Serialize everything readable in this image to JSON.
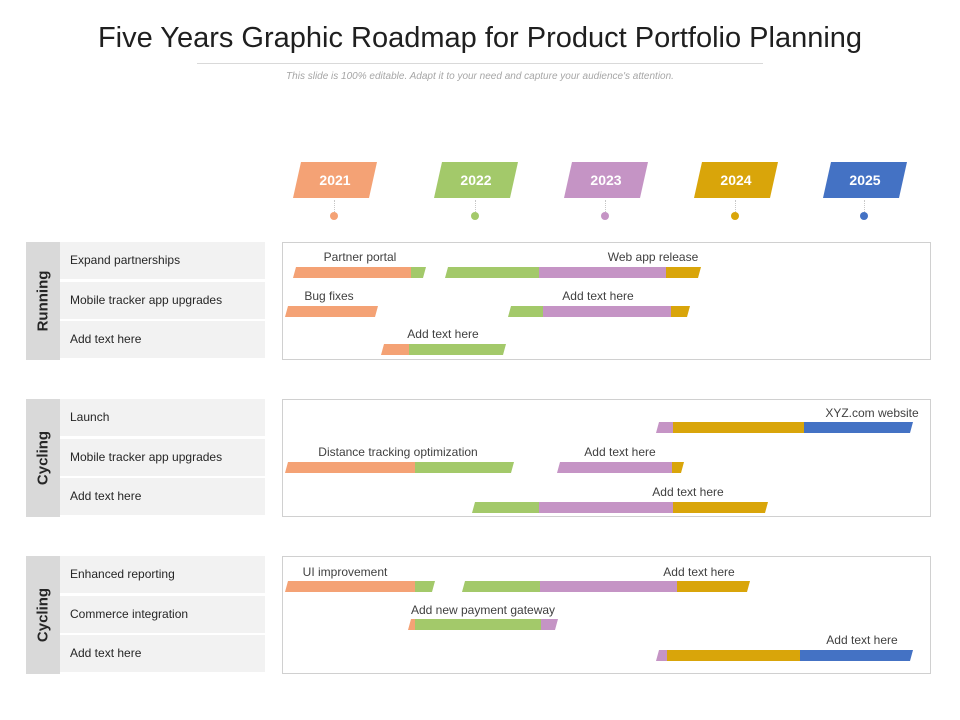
{
  "title": "Five Years Graphic Roadmap for Product Portfolio Planning",
  "subtitle": "This slide is 100% editable. Adapt it to your need and capture your audience's attention.",
  "colors": {
    "y2021": "#f4a275",
    "y2022": "#a3c96a",
    "y2023": "#c594c5",
    "y2024": "#d9a50a",
    "y2025": "#4472c4"
  },
  "years": [
    "2021",
    "2022",
    "2023",
    "2024",
    "2025"
  ],
  "sections": [
    {
      "category": "Running",
      "rows": [
        "Expand partnerships",
        "Mobile tracker app upgrades",
        "Add text here"
      ],
      "bars": [
        {
          "label": "Partner portal"
        },
        {
          "label": "Web app release"
        },
        {
          "label": "Bug fixes"
        },
        {
          "label": "Add text here"
        },
        {
          "label": "Add text here"
        }
      ]
    },
    {
      "category": "Cycling",
      "rows": [
        "Launch",
        "Mobile tracker app upgrades",
        "Add text here"
      ],
      "bars": [
        {
          "label": "XYZ.com  website"
        },
        {
          "label": "Distance tracking optimization"
        },
        {
          "label": "Add text here"
        },
        {
          "label": "Add text here"
        }
      ]
    },
    {
      "category": "Cycling",
      "rows": [
        "Enhanced reporting",
        "Commerce  integration",
        "Add text here"
      ],
      "bars": [
        {
          "label": "UI improvement"
        },
        {
          "label": "Add text here"
        },
        {
          "label": "Add new payment gateway"
        },
        {
          "label": "Add text here"
        }
      ]
    }
  ]
}
